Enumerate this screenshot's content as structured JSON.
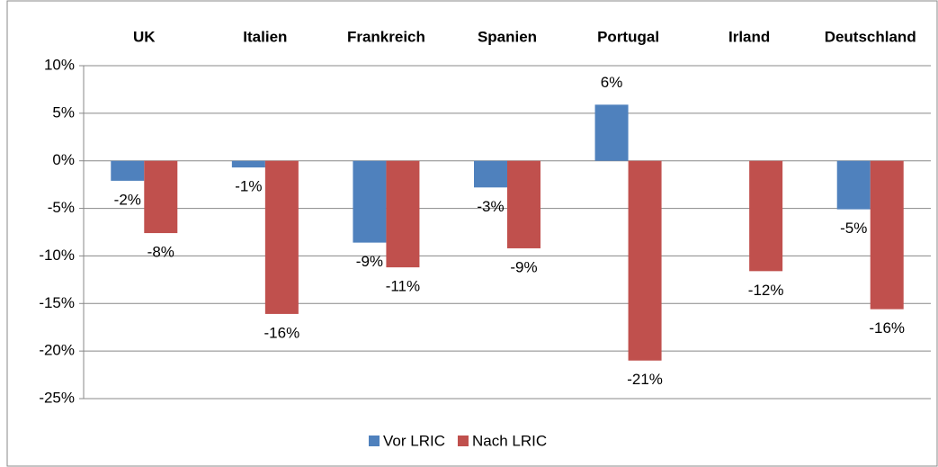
{
  "chart_data": {
    "type": "bar",
    "categories": [
      "UK",
      "Italien",
      "Frankreich",
      "Spanien",
      "Portugal",
      "Irland",
      "Deutschland"
    ],
    "series": [
      {
        "name": "Vor LRIC",
        "color": "#4f81bd",
        "values": [
          -2.1,
          -0.7,
          -8.6,
          -2.8,
          5.9,
          null,
          -5.1
        ],
        "value_labels": [
          "-2%",
          "-1%",
          "-9%",
          "-3%",
          "6%",
          null,
          "-5%"
        ]
      },
      {
        "name": "Nach LRIC",
        "color": "#c0504d",
        "values": [
          -7.6,
          -16.1,
          -11.2,
          -9.2,
          -21.0,
          -11.6,
          -15.6
        ],
        "value_labels": [
          "-8%",
          "-16%",
          "-11%",
          "-9%",
          "-21%",
          "-12%",
          "-16%"
        ]
      }
    ],
    "ylim": [
      -25,
      10
    ],
    "yticks": [
      {
        "value": -25,
        "label": "-25%"
      },
      {
        "value": -20,
        "label": "-20%"
      },
      {
        "value": -15,
        "label": "-15%"
      },
      {
        "value": -10,
        "label": "-10%"
      },
      {
        "value": -5,
        "label": "-5%"
      },
      {
        "value": 0,
        "label": "0%"
      },
      {
        "value": 5,
        "label": "5%"
      },
      {
        "value": 10,
        "label": "10%"
      }
    ],
    "grid": true,
    "legend": "bottom"
  }
}
